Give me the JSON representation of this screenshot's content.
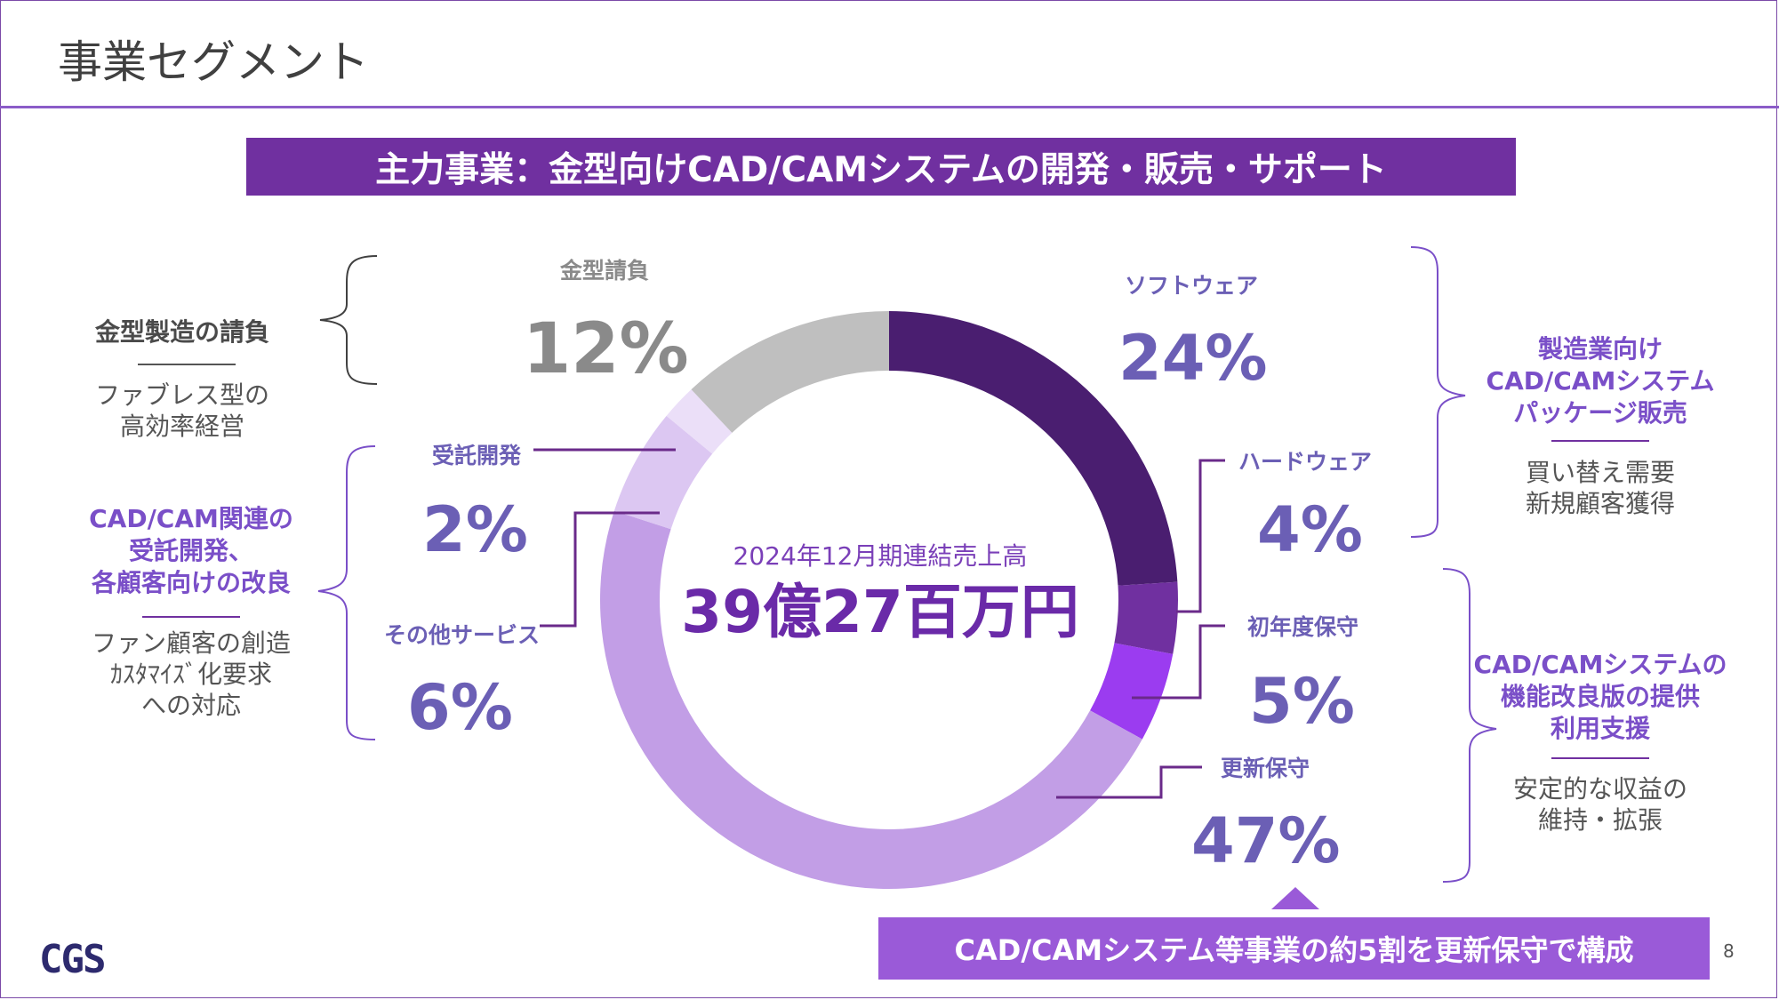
{
  "page": {
    "title": "事業セグメント",
    "banner": "主力事業：金型向けCAD/CAMシステムの開発・販売・サポート",
    "bottom_banner": "CAD/CAMシステム等事業の約5割を更新保守で構成",
    "page_number": "8",
    "logo": "CGS"
  },
  "center": {
    "caption": "2024年12月期連結売上高",
    "total": "39億27百万円"
  },
  "chart_data": {
    "type": "pie",
    "variant": "donut",
    "categories": [
      "ソフトウェア",
      "ハードウェア",
      "初年度保守",
      "更新保守",
      "その他サービス",
      "受託開発",
      "金型請負"
    ],
    "values": [
      24,
      4,
      5,
      47,
      6,
      2,
      12
    ],
    "labels": [
      "24%",
      "4%",
      "5%",
      "47%",
      "6%",
      "2%",
      "12%"
    ],
    "colors": [
      "#4a1e70",
      "#7030a0",
      "#9b3cf0",
      "#c29ee6",
      "#dcc7f2",
      "#ebdff8",
      "#bfbfbf"
    ]
  },
  "left_groups": [
    {
      "heading": [
        "金型製造の請負"
      ],
      "body": [
        "ファブレス型の",
        "高効率経営"
      ]
    },
    {
      "heading": [
        "CAD/CAM関連の",
        "受託開発、",
        "各顧客向けの改良"
      ],
      "body": [
        "ファン顧客の創造",
        "ｶｽﾀﾏｲｽﾞ化要求",
        "への対応"
      ]
    }
  ],
  "right_groups": [
    {
      "heading": [
        "製造業向け",
        "CAD/CAMシステム",
        "パッケージ販売"
      ],
      "body": [
        "買い替え需要",
        "新規顧客獲得"
      ]
    },
    {
      "heading": [
        "CAD/CAMシステムの",
        "機能改良版の提供",
        "利用支援"
      ],
      "body": [
        "安定的な収益の",
        "維持・拡張"
      ]
    }
  ]
}
